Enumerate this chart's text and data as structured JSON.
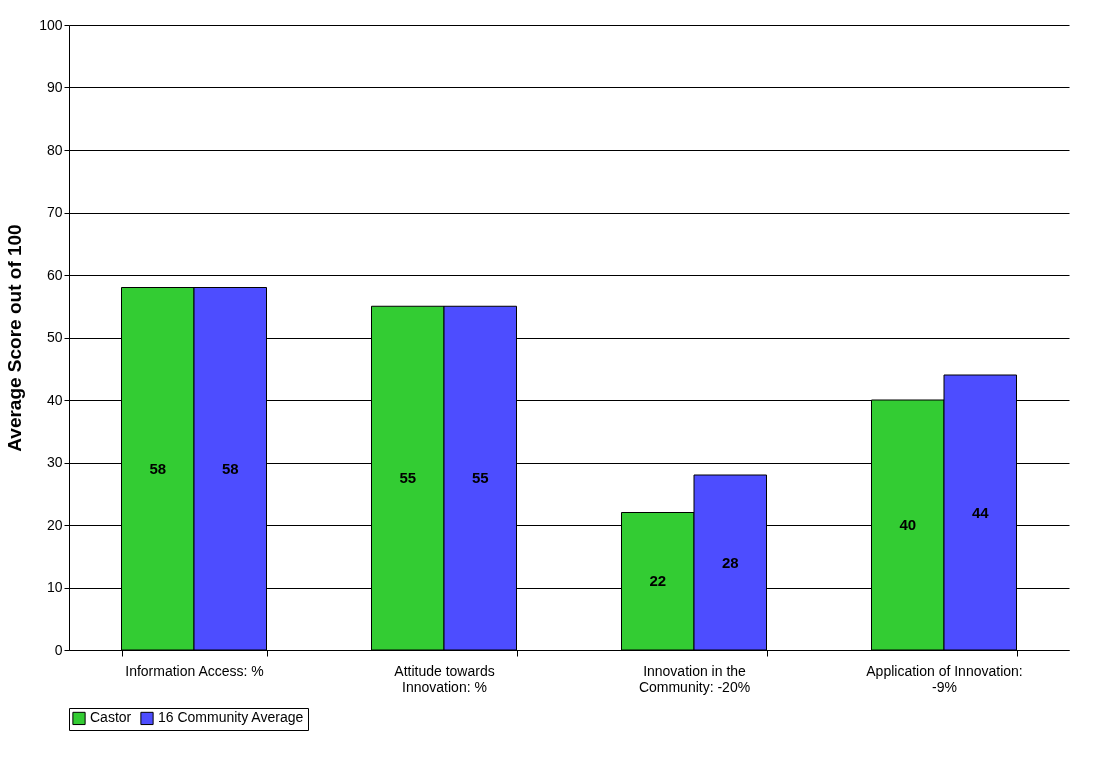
{
  "chart_data": {
    "type": "bar",
    "ylabel": "Average Score out of 100",
    "categories": [
      "Information Access: %",
      "Attitude towards Innovation: %",
      "Innovation in the Community: -20%",
      "Application of Innovation: -9%"
    ],
    "series": [
      {
        "name": "Castor",
        "color": "#33cc33",
        "values": [
          58,
          55,
          22,
          40
        ]
      },
      {
        "name": "16 Community Average",
        "color": "#4d4dff",
        "values": [
          58,
          55,
          28,
          44
        ]
      }
    ],
    "ylim": [
      0,
      100
    ],
    "yticks": [
      0,
      10,
      20,
      30,
      40,
      50,
      60,
      70,
      80,
      90,
      100
    ],
    "grid": "y",
    "legend": "bottom",
    "data_labels": true
  }
}
